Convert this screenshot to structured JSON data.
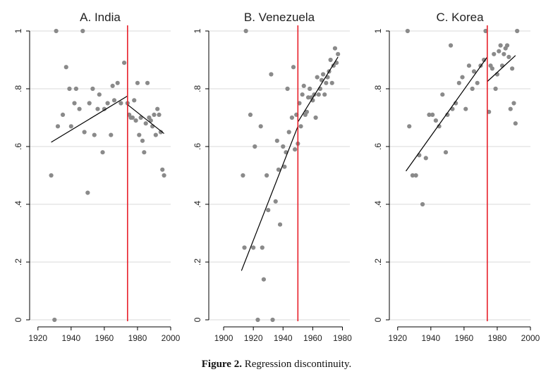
{
  "caption": {
    "label": "Figure 2.",
    "text": "Regression discontinuity."
  },
  "colors": {
    "point": "#8a8a8a",
    "fit": "#000000",
    "cutoff": "#e8202a",
    "grid": "#d8d8d8",
    "axis": "#000000"
  },
  "chart_data": [
    {
      "type": "scatter",
      "title": "A. India",
      "xlabel": "",
      "ylabel": "",
      "xlim": [
        1915,
        2000
      ],
      "ylim": [
        0,
        1
      ],
      "xticks": [
        1920,
        1940,
        1960,
        1980,
        2000
      ],
      "xtick_labels": [
        "1920",
        "1940",
        "1960",
        "1980",
        "2000"
      ],
      "yticks": [
        0,
        0.2,
        0.4,
        0.6,
        0.8,
        1
      ],
      "ytick_labels": [
        "0",
        ".2",
        ".4",
        ".6",
        ".8",
        "1"
      ],
      "grid": true,
      "cutoff": 1974,
      "points": [
        [
          1928,
          0.5
        ],
        [
          1930,
          0.0
        ],
        [
          1931,
          1.0
        ],
        [
          1932,
          0.67
        ],
        [
          1935,
          0.71
        ],
        [
          1937,
          0.875
        ],
        [
          1939,
          0.8
        ],
        [
          1940,
          0.67
        ],
        [
          1942,
          0.75
        ],
        [
          1943,
          0.8
        ],
        [
          1945,
          0.73
        ],
        [
          1947,
          1.0
        ],
        [
          1948,
          0.65
        ],
        [
          1950,
          0.44
        ],
        [
          1951,
          0.75
        ],
        [
          1953,
          0.8
        ],
        [
          1954,
          0.64
        ],
        [
          1956,
          0.73
        ],
        [
          1957,
          0.78
        ],
        [
          1959,
          0.58
        ],
        [
          1960,
          0.73
        ],
        [
          1962,
          0.75
        ],
        [
          1964,
          0.64
        ],
        [
          1965,
          0.81
        ],
        [
          1966,
          0.76
        ],
        [
          1968,
          0.82
        ],
        [
          1970,
          0.75
        ],
        [
          1972,
          0.89
        ],
        [
          1974,
          0.75
        ],
        [
          1975,
          0.71
        ],
        [
          1976,
          0.7
        ],
        [
          1977,
          0.7
        ],
        [
          1978,
          0.76
        ],
        [
          1979,
          0.69
        ],
        [
          1980,
          0.82
        ],
        [
          1981,
          0.64
        ],
        [
          1982,
          0.7
        ],
        [
          1983,
          0.62
        ],
        [
          1984,
          0.58
        ],
        [
          1985,
          0.68
        ],
        [
          1986,
          0.82
        ],
        [
          1987,
          0.7
        ],
        [
          1988,
          0.69
        ],
        [
          1989,
          0.67
        ],
        [
          1990,
          0.71
        ],
        [
          1991,
          0.64
        ],
        [
          1992,
          0.73
        ],
        [
          1993,
          0.71
        ],
        [
          1994,
          0.65
        ],
        [
          1995,
          0.52
        ],
        [
          1996,
          0.5
        ]
      ],
      "fit_segments": [
        {
          "x": [
            1928,
            1974
          ],
          "y": [
            0.615,
            0.775
          ]
        },
        {
          "x": [
            1974,
            1996
          ],
          "y": [
            0.745,
            0.645
          ]
        }
      ]
    },
    {
      "type": "scatter",
      "title": "B. Venezuela",
      "xlabel": "",
      "ylabel": "",
      "xlim": [
        1890,
        1985
      ],
      "ylim": [
        0,
        1
      ],
      "xticks": [
        1900,
        1920,
        1940,
        1960,
        1980
      ],
      "xtick_labels": [
        "1900",
        "1920",
        "1940",
        "1960",
        "1980"
      ],
      "yticks": [
        0,
        0.2,
        0.4,
        0.6,
        0.8,
        1
      ],
      "ytick_labels": [
        "0",
        ".2",
        ".4",
        ".6",
        ".8",
        "1"
      ],
      "grid": true,
      "cutoff": 1950,
      "points": [
        [
          1913,
          0.5
        ],
        [
          1914,
          0.25
        ],
        [
          1915,
          1.0
        ],
        [
          1918,
          0.71
        ],
        [
          1920,
          0.25
        ],
        [
          1921,
          0.6
        ],
        [
          1923,
          0.0
        ],
        [
          1925,
          0.67
        ],
        [
          1926,
          0.25
        ],
        [
          1927,
          0.14
        ],
        [
          1929,
          0.5
        ],
        [
          1930,
          0.38
        ],
        [
          1932,
          0.85
        ],
        [
          1933,
          0.0
        ],
        [
          1935,
          0.41
        ],
        [
          1936,
          0.62
        ],
        [
          1937,
          0.52
        ],
        [
          1938,
          0.33
        ],
        [
          1940,
          0.6
        ],
        [
          1941,
          0.53
        ],
        [
          1942,
          0.58
        ],
        [
          1943,
          0.8
        ],
        [
          1944,
          0.65
        ],
        [
          1946,
          0.7
        ],
        [
          1947,
          0.875
        ],
        [
          1948,
          0.59
        ],
        [
          1949,
          0.71
        ],
        [
          1950,
          0.61
        ],
        [
          1951,
          0.75
        ],
        [
          1952,
          0.67
        ],
        [
          1953,
          0.78
        ],
        [
          1954,
          0.81
        ],
        [
          1955,
          0.71
        ],
        [
          1956,
          0.72
        ],
        [
          1957,
          0.77
        ],
        [
          1958,
          0.8
        ],
        [
          1959,
          0.77
        ],
        [
          1960,
          0.76
        ],
        [
          1961,
          0.78
        ],
        [
          1962,
          0.7
        ],
        [
          1963,
          0.84
        ],
        [
          1964,
          0.78
        ],
        [
          1965,
          0.8
        ],
        [
          1966,
          0.83
        ],
        [
          1967,
          0.85
        ],
        [
          1968,
          0.78
        ],
        [
          1969,
          0.82
        ],
        [
          1970,
          0.84
        ],
        [
          1971,
          0.86
        ],
        [
          1972,
          0.9
        ],
        [
          1973,
          0.82
        ],
        [
          1974,
          0.88
        ],
        [
          1975,
          0.94
        ],
        [
          1976,
          0.89
        ],
        [
          1977,
          0.92
        ]
      ],
      "fit_segments": [
        {
          "x": [
            1912,
            1950
          ],
          "y": [
            0.17,
            0.67
          ]
        },
        {
          "x": [
            1950,
            1977
          ],
          "y": [
            0.685,
            0.91
          ]
        }
      ]
    },
    {
      "type": "scatter",
      "title": "C. Korea",
      "xlabel": "",
      "ylabel": "",
      "xlim": [
        1915,
        2000
      ],
      "ylim": [
        0,
        1
      ],
      "xticks": [
        1920,
        1940,
        1960,
        1980,
        2000
      ],
      "xtick_labels": [
        "1920",
        "1940",
        "1960",
        "1980",
        "2000"
      ],
      "yticks": [
        0,
        0.2,
        0.4,
        0.6,
        0.8,
        1
      ],
      "ytick_labels": [
        "0",
        ".2",
        ".4",
        ".6",
        ".8",
        "1"
      ],
      "grid": true,
      "cutoff": 1974,
      "points": [
        [
          1926,
          1.0
        ],
        [
          1927,
          0.67
        ],
        [
          1929,
          0.5
        ],
        [
          1931,
          0.5
        ],
        [
          1933,
          0.57
        ],
        [
          1935,
          0.4
        ],
        [
          1937,
          0.56
        ],
        [
          1939,
          0.71
        ],
        [
          1941,
          0.71
        ],
        [
          1943,
          0.69
        ],
        [
          1945,
          0.67
        ],
        [
          1947,
          0.78
        ],
        [
          1949,
          0.58
        ],
        [
          1950,
          0.71
        ],
        [
          1952,
          0.95
        ],
        [
          1953,
          0.73
        ],
        [
          1955,
          0.75
        ],
        [
          1957,
          0.82
        ],
        [
          1959,
          0.84
        ],
        [
          1961,
          0.73
        ],
        [
          1963,
          0.88
        ],
        [
          1965,
          0.8
        ],
        [
          1966,
          0.86
        ],
        [
          1968,
          0.82
        ],
        [
          1970,
          0.88
        ],
        [
          1972,
          0.9
        ],
        [
          1973,
          1.0
        ],
        [
          1975,
          0.72
        ],
        [
          1976,
          0.88
        ],
        [
          1977,
          0.87
        ],
        [
          1978,
          0.92
        ],
        [
          1979,
          0.8
        ],
        [
          1980,
          0.85
        ],
        [
          1981,
          0.93
        ],
        [
          1982,
          0.95
        ],
        [
          1983,
          0.88
        ],
        [
          1984,
          0.92
        ],
        [
          1985,
          0.94
        ],
        [
          1986,
          0.95
        ],
        [
          1987,
          0.91
        ],
        [
          1988,
          0.73
        ],
        [
          1989,
          0.87
        ],
        [
          1990,
          0.75
        ],
        [
          1991,
          0.68
        ],
        [
          1992,
          1.0
        ]
      ],
      "fit_segments": [
        {
          "x": [
            1925,
            1974
          ],
          "y": [
            0.515,
            0.91
          ]
        },
        {
          "x": [
            1974,
            1991
          ],
          "y": [
            0.825,
            0.915
          ]
        }
      ]
    }
  ]
}
